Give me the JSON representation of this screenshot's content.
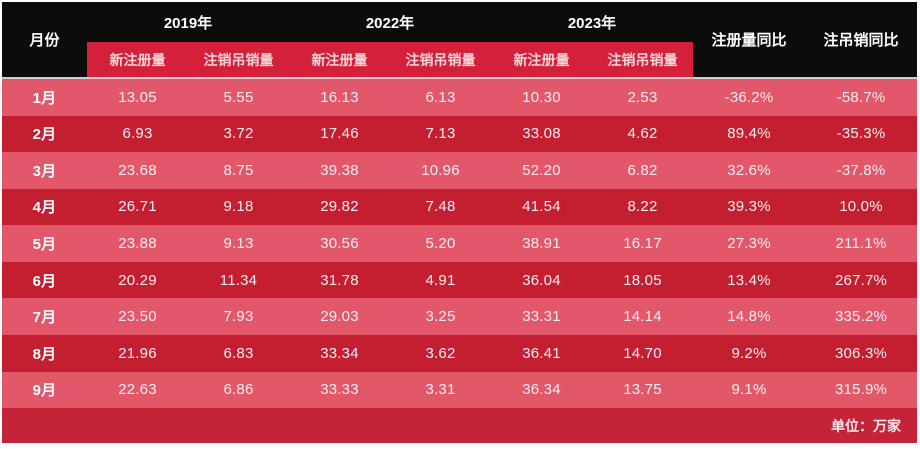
{
  "table": {
    "header": {
      "month_label": "月份",
      "year_groups": [
        {
          "year": "2019年",
          "sub": [
            "新注册量",
            "注销吊销量"
          ]
        },
        {
          "year": "2022年",
          "sub": [
            "新注册量",
            "注销吊销量"
          ]
        },
        {
          "year": "2023年",
          "sub": [
            "新注册量",
            "注销吊销量"
          ]
        }
      ],
      "yoy_registration": "注册量同比",
      "yoy_deregistration": "注吊销同比"
    },
    "rows": [
      [
        "1月",
        "13.05",
        "5.55",
        "16.13",
        "6.13",
        "10.30",
        "2.53",
        "-36.2%",
        "-58.7%"
      ],
      [
        "2月",
        "6.93",
        "3.72",
        "17.46",
        "7.13",
        "33.08",
        "4.62",
        "89.4%",
        "-35.3%"
      ],
      [
        "3月",
        "23.68",
        "8.75",
        "39.38",
        "10.96",
        "52.20",
        "6.82",
        "32.6%",
        "-37.8%"
      ],
      [
        "4月",
        "26.71",
        "9.18",
        "29.82",
        "7.48",
        "41.54",
        "8.22",
        "39.3%",
        "10.0%"
      ],
      [
        "5月",
        "23.88",
        "9.13",
        "30.56",
        "5.20",
        "38.91",
        "16.17",
        "27.3%",
        "211.1%"
      ],
      [
        "6月",
        "20.29",
        "11.34",
        "31.78",
        "4.91",
        "36.04",
        "18.05",
        "13.4%",
        "267.7%"
      ],
      [
        "7月",
        "23.50",
        "7.93",
        "29.03",
        "3.25",
        "33.31",
        "14.14",
        "14.8%",
        "335.2%"
      ],
      [
        "8月",
        "21.96",
        "6.83",
        "33.34",
        "3.62",
        "36.41",
        "14.70",
        "9.2%",
        "306.3%"
      ],
      [
        "9月",
        "22.63",
        "6.86",
        "33.33",
        "3.31",
        "36.34",
        "13.75",
        "9.1%",
        "315.9%"
      ]
    ],
    "footer": {
      "unit_note": "单位：万家"
    }
  },
  "colors": {
    "header_background": "#0c0c0c",
    "subheader_red": "#d4203a",
    "row_light": "#e2586a",
    "row_dark": "#c41f31",
    "footer_red": "#c42338",
    "text_white": "#ffffff"
  },
  "chart_data": {
    "type": "table",
    "unit": "万家",
    "unit_note": "单位：万家",
    "categories": [
      "1月",
      "2月",
      "3月",
      "4月",
      "5月",
      "6月",
      "7月",
      "8月",
      "9月"
    ],
    "series": [
      {
        "name": "2019年 新注册量",
        "values": [
          13.05,
          6.93,
          23.68,
          26.71,
          23.88,
          20.29,
          23.5,
          21.96,
          22.63
        ]
      },
      {
        "name": "2019年 注销吊销量",
        "values": [
          5.55,
          3.72,
          8.75,
          9.18,
          9.13,
          11.34,
          7.93,
          6.83,
          6.86
        ]
      },
      {
        "name": "2022年 新注册量",
        "values": [
          16.13,
          17.46,
          39.38,
          29.82,
          30.56,
          31.78,
          29.03,
          33.34,
          33.33
        ]
      },
      {
        "name": "2022年 注销吊销量",
        "values": [
          6.13,
          7.13,
          10.96,
          7.48,
          5.2,
          4.91,
          3.25,
          3.62,
          3.31
        ]
      },
      {
        "name": "2023年 新注册量",
        "values": [
          10.3,
          33.08,
          52.2,
          41.54,
          38.91,
          36.04,
          33.31,
          36.41,
          36.34
        ]
      },
      {
        "name": "2023年 注销吊销量",
        "values": [
          2.53,
          4.62,
          6.82,
          8.22,
          16.17,
          18.05,
          14.14,
          14.7,
          13.75
        ]
      },
      {
        "name": "注册量同比",
        "values": [
          "-36.2%",
          "89.4%",
          "32.6%",
          "39.3%",
          "27.3%",
          "13.4%",
          "14.8%",
          "9.2%",
          "9.1%"
        ]
      },
      {
        "name": "注吊销同比",
        "values": [
          "-58.7%",
          "-35.3%",
          "-37.8%",
          "10.0%",
          "211.1%",
          "267.7%",
          "335.2%",
          "306.3%",
          "315.9%"
        ]
      }
    ],
    "layout": {
      "striped_rows": true,
      "header_rows": 2,
      "legend_position": "none",
      "grid": false
    }
  }
}
